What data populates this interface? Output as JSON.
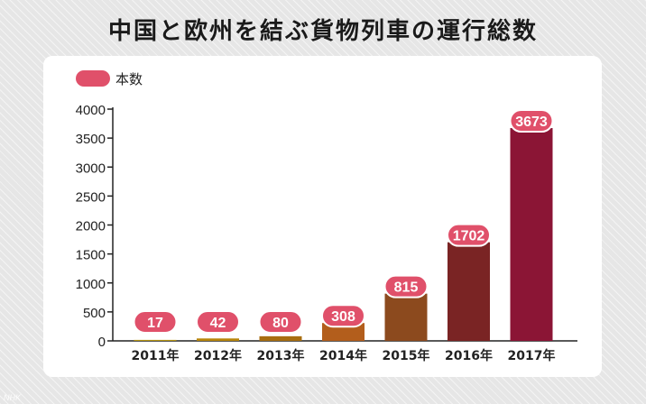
{
  "header": {
    "title": "中国と欧州を結ぶ貨物列車の運行総数"
  },
  "watermark": "NHK",
  "colors": {
    "legend_swatch": "#e0506a",
    "label_badge": "#e0506a",
    "axis": "#222222",
    "bars": [
      "#b39212",
      "#b8860b",
      "#a86e10",
      "#b35e1c",
      "#8c4a1e",
      "#7a2424",
      "#8b1535"
    ]
  },
  "chart_data": {
    "type": "bar",
    "title": "中国と欧州を結ぶ貨物列車の運行総数",
    "categories": [
      "2011年",
      "2012年",
      "2013年",
      "2014年",
      "2015年",
      "2016年",
      "2017年"
    ],
    "series": [
      {
        "name": "本数",
        "values": [
          17,
          42,
          80,
          308,
          815,
          1702,
          3673
        ]
      }
    ],
    "data_labels": [
      "17",
      "42",
      "80",
      "308",
      "815",
      "1702",
      "3673"
    ],
    "y_ticks": [
      "0",
      "500",
      "1000",
      "1500",
      "2000",
      "2500",
      "3000",
      "3500",
      "4000"
    ],
    "ylim": [
      0,
      4000
    ],
    "xlabel": "",
    "ylabel": "",
    "grid": false,
    "legend": "top-left"
  }
}
